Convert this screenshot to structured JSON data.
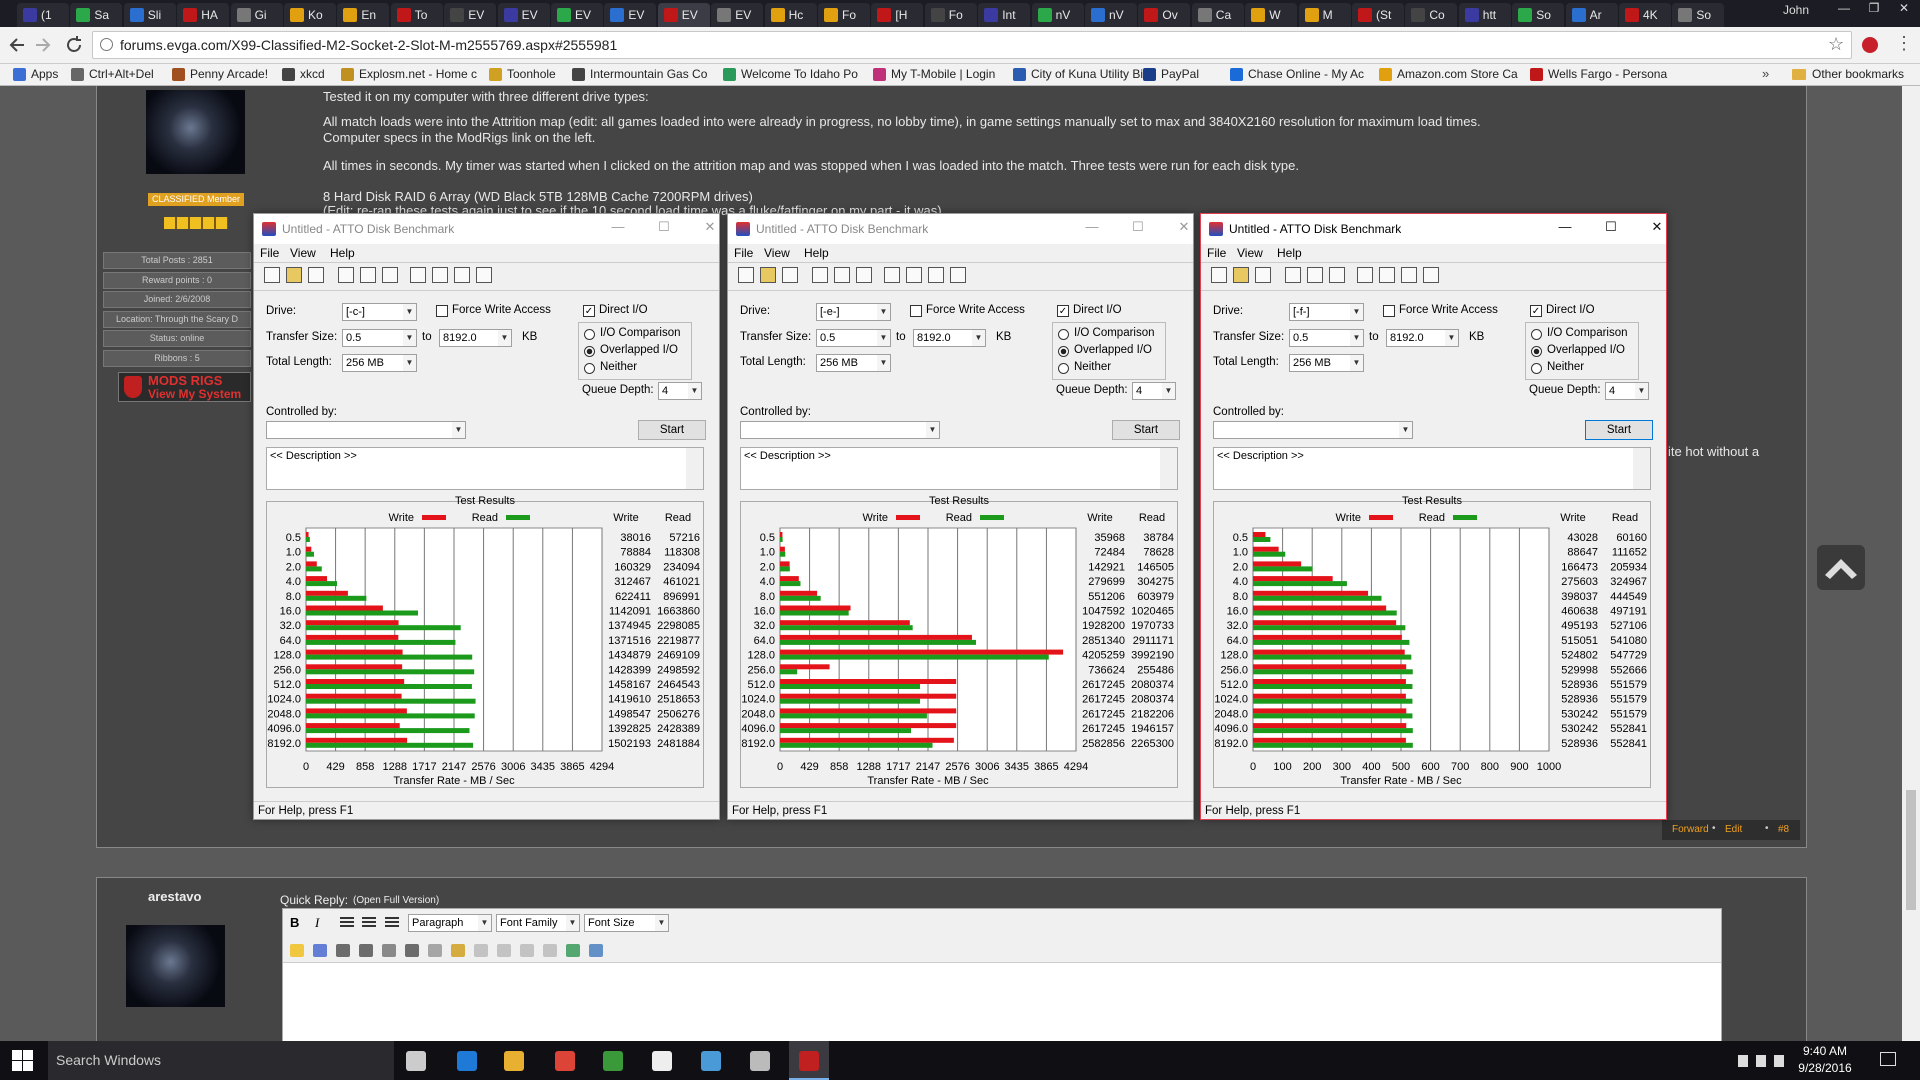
{
  "browser": {
    "tabs": [
      "(1",
      "Sa",
      "Sli",
      "HA",
      "Gi",
      "Ko",
      "En",
      "To",
      "EV",
      "EV",
      "EV",
      "EV",
      "EV",
      "EV",
      "Hc",
      "Fo",
      "[H",
      "Fo",
      "Int",
      "nV",
      "nV",
      "Ov",
      "Ca",
      "W",
      "M",
      "(St",
      "Co",
      "htt",
      "So",
      "Ar",
      "4K",
      "So"
    ],
    "active_tab": 12,
    "user": "John",
    "url": "forums.evga.com/X99-Classified-M2-Socket-2-Slot-M-m2555769.aspx#2555981",
    "bookmarks": [
      "Apps",
      "Ctrl+Alt+Del",
      "Penny Arcade!",
      "xkcd",
      "Explosm.net - Home c",
      "Toonhole",
      "Intermountain Gas Co",
      "Welcome To Idaho Po",
      "My T-Mobile | Login",
      "City of Kuna Utility Bi",
      "PayPal",
      "Chase Online - My Ac",
      "Amazon.com Store Ca",
      "Wells Fargo - Persona"
    ],
    "other_bookmarks": "Other bookmarks"
  },
  "post": {
    "lines": [
      "Tested it on my computer with three different drive types:",
      "All match loads were into the Attrition map (edit: all games loaded into were already in progress, no lobby time), in game settings manually set to max and 3840X2160 resolution for maximum load times.",
      "Computer specs in the ModRigs link on the left.",
      "All times in seconds. My timer was started when I clicked on the attrition map and was stopped when I was loaded into the match. Three tests were run for each disk type.",
      "8 Hard Disk RAID 6 Array (WD Black 5TB 128MB Cache 7200RPM drives)",
      "(Edit: re-ran these tests again just to see if the 10 second load time was a fluke/fatfinger on my part - it was)"
    ],
    "side_text": "ite hot without a",
    "badge": "CLASSIFIED Member",
    "info": [
      "Total Posts : 2851",
      "Reward points : 0",
      "Joined: 2/6/2008",
      "Location: Through the Scary D",
      "Status: online",
      "Ribbons : 5"
    ],
    "mods_rigs": "MODS RIGS",
    "view_system": "View My System",
    "footer": [
      "Forward",
      "Edit",
      "#8"
    ]
  },
  "atto": {
    "title": "Untitled - ATTO Disk Benchmark",
    "menu": [
      "File",
      "View",
      "Help"
    ],
    "drive_label": "Drive:",
    "force_write": "Force Write Access",
    "direct_io": "Direct I/O",
    "transfer_size": "Transfer Size:",
    "transfer_from": "0.5",
    "to": "to",
    "transfer_to": "8192.0",
    "kb": "KB",
    "total_length": "Total Length:",
    "length": "256 MB",
    "io_comparison": "I/O Comparison",
    "overlapped": "Overlapped I/O",
    "neither": "Neither",
    "queue_depth": "Queue Depth:",
    "queue": "4",
    "controlled_by": "Controlled by:",
    "start": "Start",
    "description": "<< Description >>",
    "test_results": "Test Results",
    "write": "Write",
    "read": "Read",
    "write_color": "#e41219",
    "read_color": "#1b9a1b",
    "axis_label": "Transfer Rate - MB / Sec",
    "status": "For Help, press F1",
    "sizes": [
      "0.5",
      "1.0",
      "2.0",
      "4.0",
      "8.0",
      "16.0",
      "32.0",
      "64.0",
      "128.0",
      "256.0",
      "512.0",
      "1024.0",
      "2048.0",
      "4096.0",
      "8192.0"
    ]
  },
  "windows": [
    {
      "drive": "[-c-]",
      "active": false,
      "xlim": [
        0,
        4294
      ],
      "xticks": [
        0,
        429,
        858,
        1288,
        1717,
        2147,
        2576,
        3006,
        3435,
        3865,
        4294
      ],
      "write": [
        38016,
        78884,
        160329,
        312467,
        622411,
        1142091,
        1374945,
        1371516,
        1434879,
        1428399,
        1458167,
        1419610,
        1498547,
        1392825,
        1502193
      ],
      "read": [
        57216,
        118308,
        234094,
        461021,
        896991,
        1663860,
        2298085,
        2219877,
        2469109,
        2498592,
        2464543,
        2518653,
        2506276,
        2428389,
        2481884
      ]
    },
    {
      "drive": "[-e-]",
      "active": false,
      "xlim": [
        0,
        4294
      ],
      "xticks": [
        0,
        429,
        858,
        1288,
        1717,
        2147,
        2576,
        3006,
        3435,
        3865,
        4294
      ],
      "write": [
        35968,
        72484,
        142921,
        279699,
        551206,
        1047592,
        1928200,
        2851340,
        4205259,
        736624,
        2617245,
        2617245,
        2617245,
        2617245,
        2582856
      ],
      "read": [
        38784,
        78628,
        146505,
        304275,
        603979,
        1020465,
        1970733,
        2911171,
        3992190,
        255486,
        2080374,
        2080374,
        2182206,
        1946157,
        2265300
      ]
    },
    {
      "drive": "[-f-]",
      "active": true,
      "xlim": [
        0,
        1000
      ],
      "xticks": [
        0,
        100,
        200,
        300,
        400,
        500,
        600,
        700,
        800,
        900,
        1000
      ],
      "write": [
        43028,
        88647,
        166473,
        275603,
        398037,
        460638,
        495193,
        515051,
        524802,
        529998,
        528936,
        528936,
        530242,
        530242,
        528936
      ],
      "read": [
        60160,
        111652,
        205934,
        324967,
        444549,
        497191,
        527106,
        541080,
        547729,
        552666,
        551579,
        551579,
        551579,
        552841,
        552841
      ]
    }
  ],
  "reply": {
    "user": "arestavo",
    "title": "Quick Reply:",
    "full_version": "(Open Full Version)",
    "format": [
      "Paragraph",
      "Font Family",
      "Font Size"
    ]
  },
  "taskbar": {
    "search": "Search Windows",
    "time": "9:40 AM",
    "date": "9/28/2016"
  }
}
